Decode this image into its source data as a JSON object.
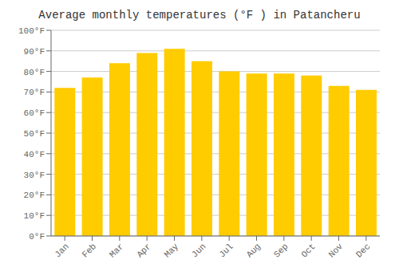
{
  "chart_data": {
    "type": "bar",
    "title": "Average monthly temperatures (°F ) in Patancheru",
    "categories": [
      "Jan",
      "Feb",
      "Mar",
      "Apr",
      "May",
      "Jun",
      "Jul",
      "Aug",
      "Sep",
      "Oct",
      "Nov",
      "Dec"
    ],
    "values": [
      72,
      77,
      84,
      89,
      91,
      85,
      80,
      79,
      79,
      78,
      73,
      71
    ],
    "color": "#FFCC00",
    "ylim": [
      0,
      100
    ],
    "yticks": [
      {
        "value": 0,
        "label": "0°F"
      },
      {
        "value": 10,
        "label": "10°F"
      },
      {
        "value": 20,
        "label": "20°F"
      },
      {
        "value": 30,
        "label": "30°F"
      },
      {
        "value": 40,
        "label": "40°F"
      },
      {
        "value": 50,
        "label": "50°F"
      },
      {
        "value": 60,
        "label": "60°F"
      },
      {
        "value": 70,
        "label": "70°F"
      },
      {
        "value": 80,
        "label": "80°F"
      },
      {
        "value": 90,
        "label": "90°F"
      },
      {
        "value": 100,
        "label": "100°F"
      }
    ],
    "grid": true
  }
}
